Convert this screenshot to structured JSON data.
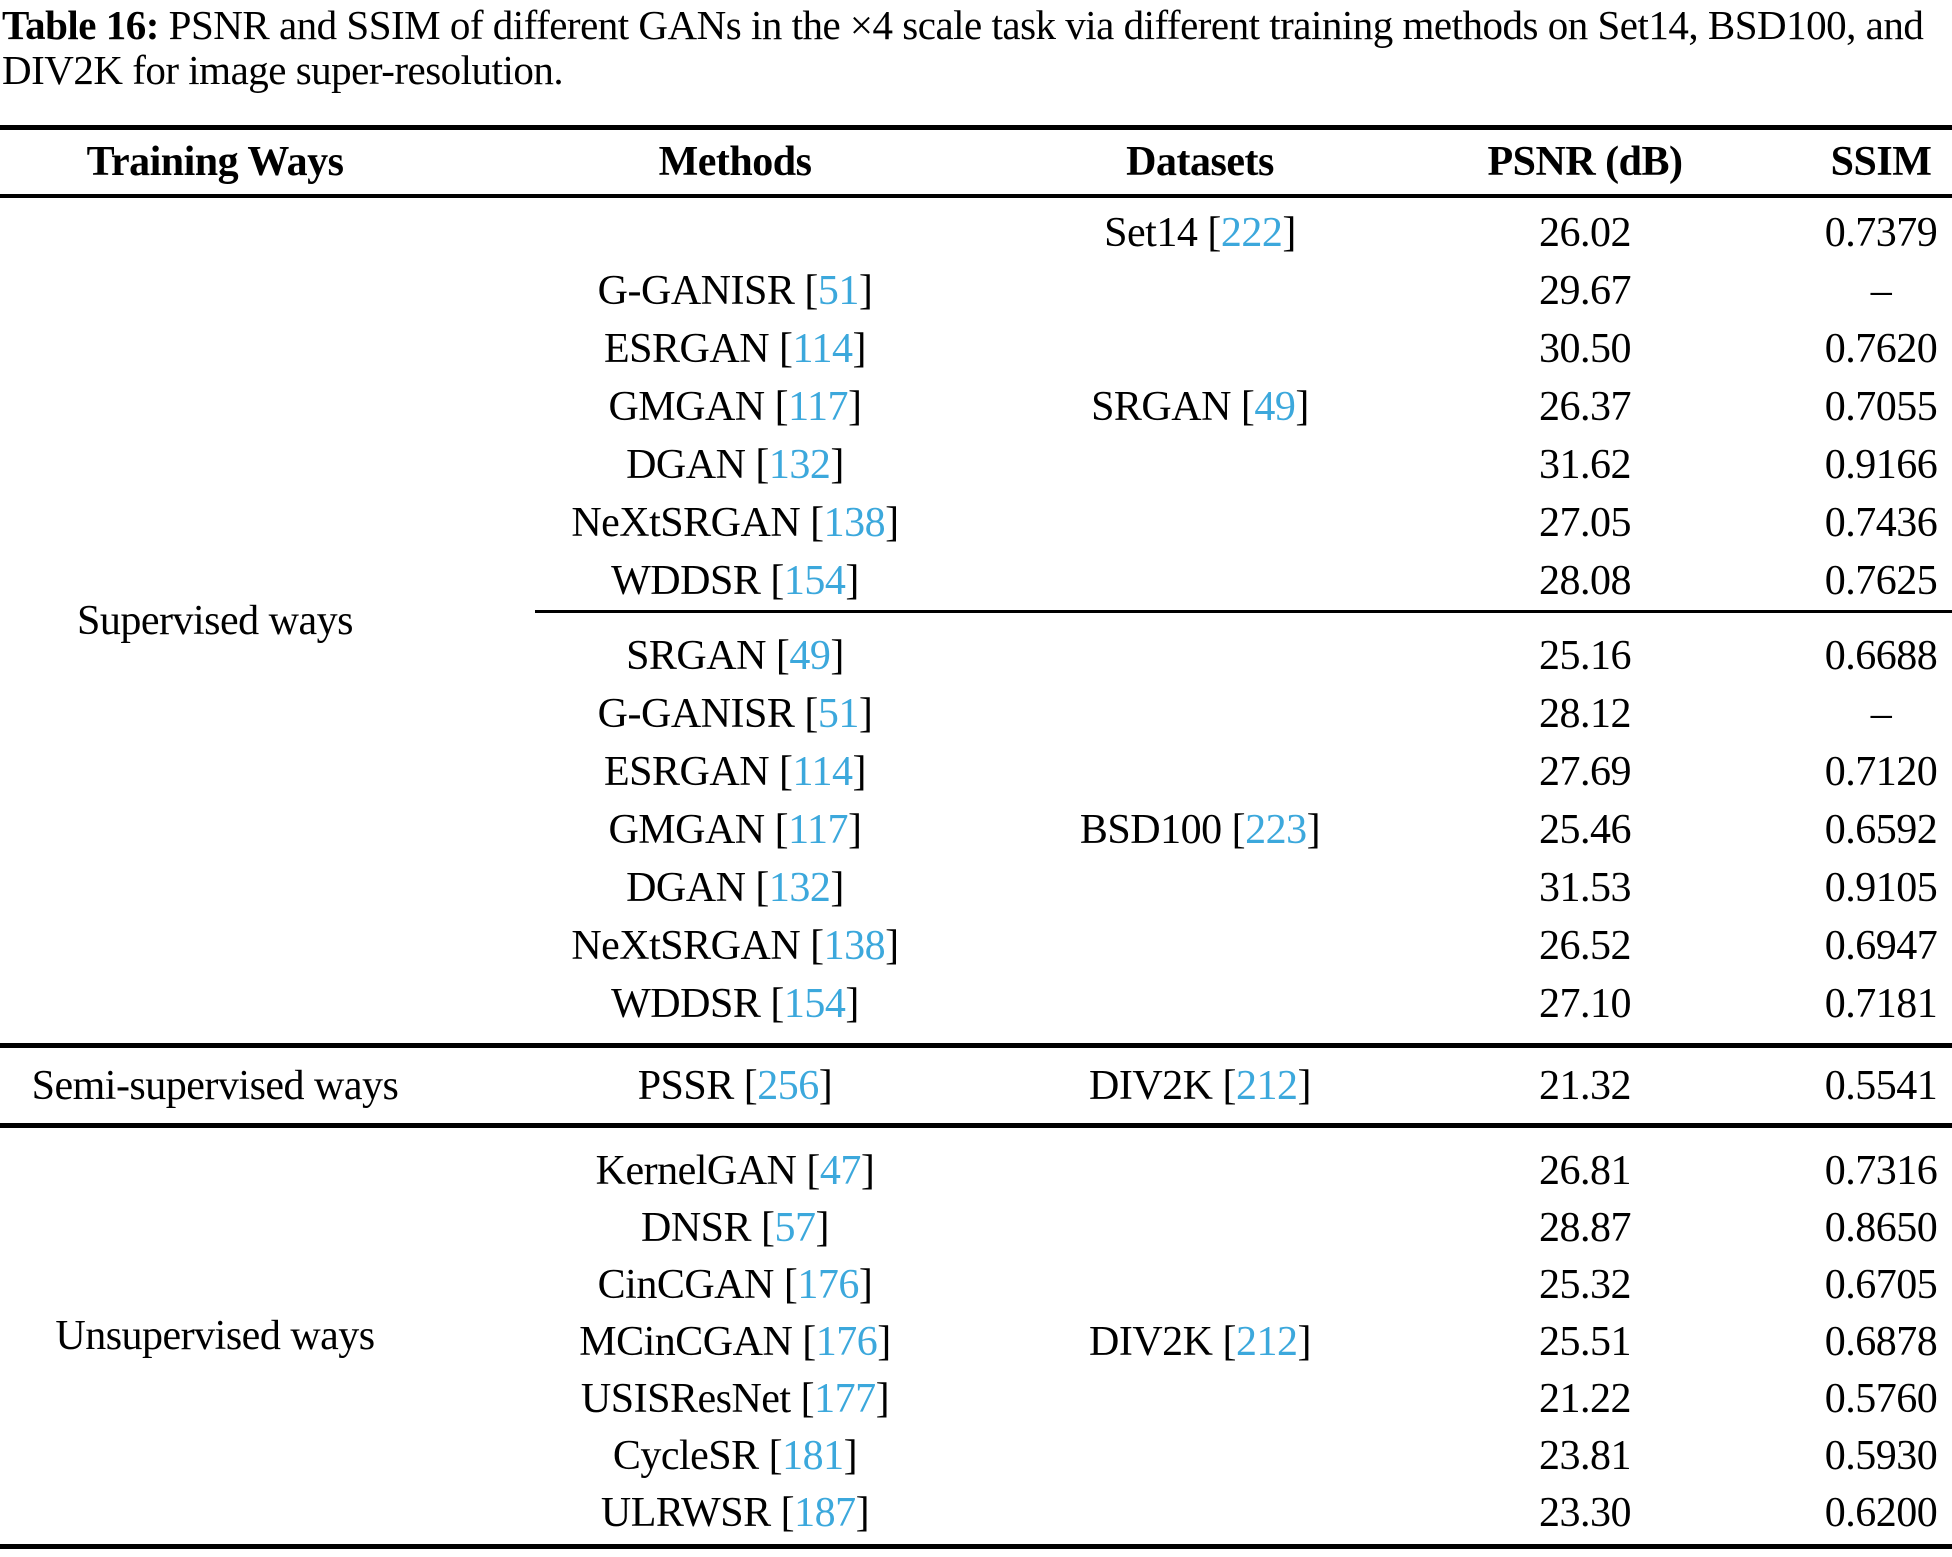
{
  "caption": {
    "label": "Table 16:",
    "line1": " PSNR and SSIM of different GANs in the ×4 scale task via different training methods on Set14, BSD100, and",
    "line2": "DIV2K for image super-resolution."
  },
  "colors": {
    "citation_blue": "#3CA8DC",
    "text": "#000000",
    "background": "#FFFFFF"
  },
  "table": {
    "headers": [
      "Training Ways",
      "Methods",
      "Datasets",
      "PSNR (dB)",
      "SSIM"
    ],
    "section_labels": {
      "supervised": "Supervised ways",
      "semi": "Semi-supervised ways",
      "unsupervised": "Unsupervised ways"
    },
    "rows": [
      {
        "m0": "",
        "m1": "",
        "m2": "",
        "d0": "Set14 [",
        "d1": "222",
        "d2": "]",
        "p": "26.02",
        "s": "0.7379"
      },
      {
        "m0": "G-GANISR [",
        "m1": "51",
        "m2": "]",
        "d0": "",
        "d1": "",
        "d2": "",
        "p": "29.67",
        "s": "–"
      },
      {
        "m0": "ESRGAN [",
        "m1": "114",
        "m2": "]",
        "d0": "",
        "d1": "",
        "d2": "",
        "p": "30.50",
        "s": "0.7620"
      },
      {
        "m0": "GMGAN [",
        "m1": "117",
        "m2": "]",
        "d0": "SRGAN [",
        "d1": "49",
        "d2": "]",
        "p": "26.37",
        "s": "0.7055"
      },
      {
        "m0": "DGAN [",
        "m1": "132",
        "m2": "]",
        "d0": "",
        "d1": "",
        "d2": "",
        "p": "31.62",
        "s": "0.9166"
      },
      {
        "m0": "NeXtSRGAN [",
        "m1": "138",
        "m2": "]",
        "d0": "",
        "d1": "",
        "d2": "",
        "p": "27.05",
        "s": "0.7436"
      },
      {
        "m0": "WDDSR [",
        "m1": "154",
        "m2": "]",
        "d0": "",
        "d1": "",
        "d2": "",
        "p": "28.08",
        "s": "0.7625"
      },
      {
        "m0": "SRGAN [",
        "m1": "49",
        "m2": "]",
        "d0": "",
        "d1": "",
        "d2": "",
        "p": "25.16",
        "s": "0.6688"
      },
      {
        "m0": "G-GANISR [",
        "m1": "51",
        "m2": "]",
        "d0": "",
        "d1": "",
        "d2": "",
        "p": "28.12",
        "s": "–"
      },
      {
        "m0": "ESRGAN [",
        "m1": "114",
        "m2": "]",
        "d0": "",
        "d1": "",
        "d2": "",
        "p": "27.69",
        "s": "0.7120"
      },
      {
        "m0": "GMGAN [",
        "m1": "117",
        "m2": "]",
        "d0": "BSD100 [",
        "d1": "223",
        "d2": "]",
        "p": "25.46",
        "s": "0.6592"
      },
      {
        "m0": "DGAN [",
        "m1": "132",
        "m2": "]",
        "d0": "",
        "d1": "",
        "d2": "",
        "p": "31.53",
        "s": "0.9105"
      },
      {
        "m0": "NeXtSRGAN [",
        "m1": "138",
        "m2": "]",
        "d0": "",
        "d1": "",
        "d2": "",
        "p": "26.52",
        "s": "0.6947"
      },
      {
        "m0": "WDDSR [",
        "m1": "154",
        "m2": "]",
        "d0": "",
        "d1": "",
        "d2": "",
        "p": "27.10",
        "s": "0.7181"
      },
      {
        "m0": "PSSR [",
        "m1": "256",
        "m2": "]",
        "d0": "DIV2K [",
        "d1": "212",
        "d2": "]",
        "p": "21.32",
        "s": "0.5541"
      },
      {
        "m0": "KernelGAN [",
        "m1": "47",
        "m2": "]",
        "d0": "",
        "d1": "",
        "d2": "",
        "p": "26.81",
        "s": "0.7316"
      },
      {
        "m0": "DNSR [",
        "m1": "57",
        "m2": "]",
        "d0": "",
        "d1": "",
        "d2": "",
        "p": "28.87",
        "s": "0.8650"
      },
      {
        "m0": "CinCGAN [",
        "m1": "176",
        "m2": "]",
        "d0": "",
        "d1": "",
        "d2": "",
        "p": "25.32",
        "s": "0.6705"
      },
      {
        "m0": "MCinCGAN [",
        "m1": "176",
        "m2": "]",
        "d0": "DIV2K [",
        "d1": "212",
        "d2": "]",
        "p": "25.51",
        "s": "0.6878"
      },
      {
        "m0": "USISResNet [",
        "m1": "177",
        "m2": "]",
        "d0": "",
        "d1": "",
        "d2": "",
        "p": "21.22",
        "s": "0.5760"
      },
      {
        "m0": "CycleSR [",
        "m1": "181",
        "m2": "]",
        "d0": "",
        "d1": "",
        "d2": "",
        "p": "23.81",
        "s": "0.5930"
      },
      {
        "m0": "ULRWSR [",
        "m1": "187",
        "m2": "]",
        "d0": "",
        "d1": "",
        "d2": "",
        "p": "23.30",
        "s": "0.6200"
      }
    ]
  }
}
